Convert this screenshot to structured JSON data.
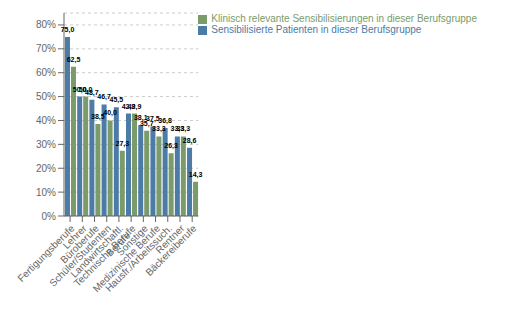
{
  "chart_data": {
    "type": "bar",
    "categories": [
      "Fertigungsberufe",
      "Lehrer",
      "Büroberufe",
      "Schüler/Studenten",
      "Landwirtschaftl. Berufe",
      "Technische Berufe",
      "Sonstige",
      "Medizinische Berufe",
      "Hausfr./Arbeitssuch.",
      "Rentner",
      "Bäckereiberufe"
    ],
    "series": [
      {
        "name": "Sensibilisierte Patienten in dieser Berufsgruppe",
        "color": "#4B7BA6",
        "values": [
          75.0,
          50.0,
          48.7,
          46.7,
          45.5,
          42.9,
          38.1,
          37.5,
          36.8,
          33.3,
          28.6
        ],
        "value_labels": [
          "75,0",
          "50,0",
          "48,7",
          "46,7",
          "45,5",
          "42,9",
          "38,1",
          "37,5",
          "36,8",
          "33,3",
          "28,6"
        ]
      },
      {
        "name": "Klinisch relevante Sensibilisierungen in dieser Berufsgruppe",
        "color": "#7B9B6A",
        "values": [
          62.5,
          50.0,
          38.5,
          40.0,
          27.3,
          42.9,
          35.7,
          33.3,
          26.3,
          33.3,
          14.3
        ],
        "value_labels": [
          "62,5",
          "50,0",
          "38,5",
          "40,0",
          "27,3",
          "42,9",
          "35,7",
          "33,3",
          "26,3",
          "33,3",
          "14,3"
        ]
      }
    ],
    "ylim": [
      0,
      85
    ],
    "yticks": [
      {
        "value": 0,
        "label": "0%"
      },
      {
        "value": 10,
        "label": "10%"
      },
      {
        "value": 20,
        "label": "20%"
      },
      {
        "value": 30,
        "label": "30%"
      },
      {
        "value": 40,
        "label": "40%"
      },
      {
        "value": 50,
        "label": "50%"
      },
      {
        "value": 60,
        "label": "60%"
      },
      {
        "value": 70,
        "label": "70%"
      },
      {
        "value": 80,
        "label": "80%"
      }
    ],
    "grid": true,
    "legend": "upper right",
    "data_labels": true
  }
}
